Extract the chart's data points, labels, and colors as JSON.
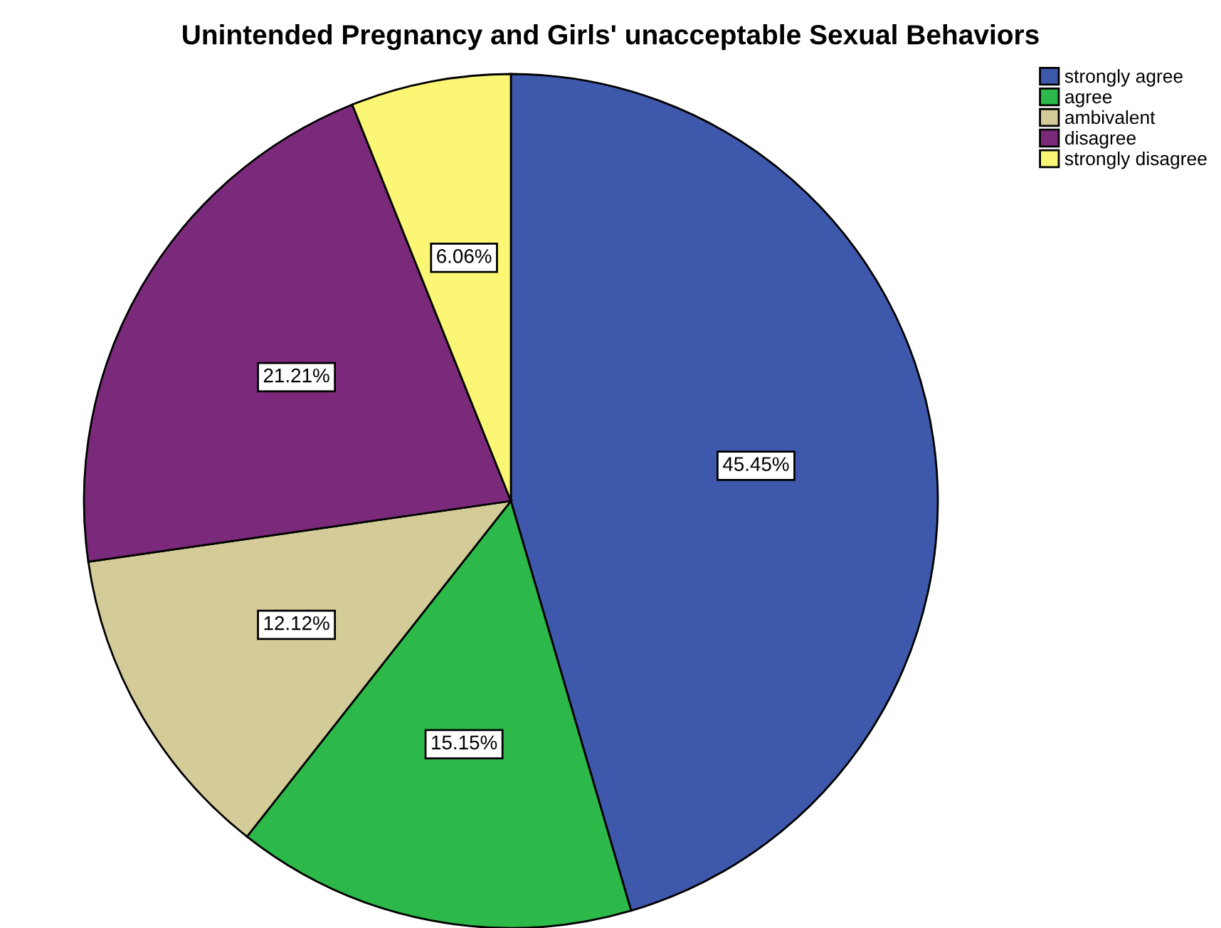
{
  "chart_data": {
    "type": "pie",
    "title": "Unintended Pregnancy and Girls' unacceptable Sexual Behaviors",
    "categories": [
      "strongly agree",
      "agree",
      "ambivalent",
      "disagree",
      "strongly disagree"
    ],
    "values": [
      45.45,
      15.15,
      12.12,
      21.21,
      6.06
    ],
    "colors": [
      "#3e58ac",
      "#2db84a",
      "#d4cc98",
      "#7b2a7b",
      "#fbf774"
    ],
    "value_labels": [
      "45.45%",
      "15.15%",
      "12.12%",
      "21.21%",
      "6.06%"
    ],
    "legend": "top right"
  }
}
